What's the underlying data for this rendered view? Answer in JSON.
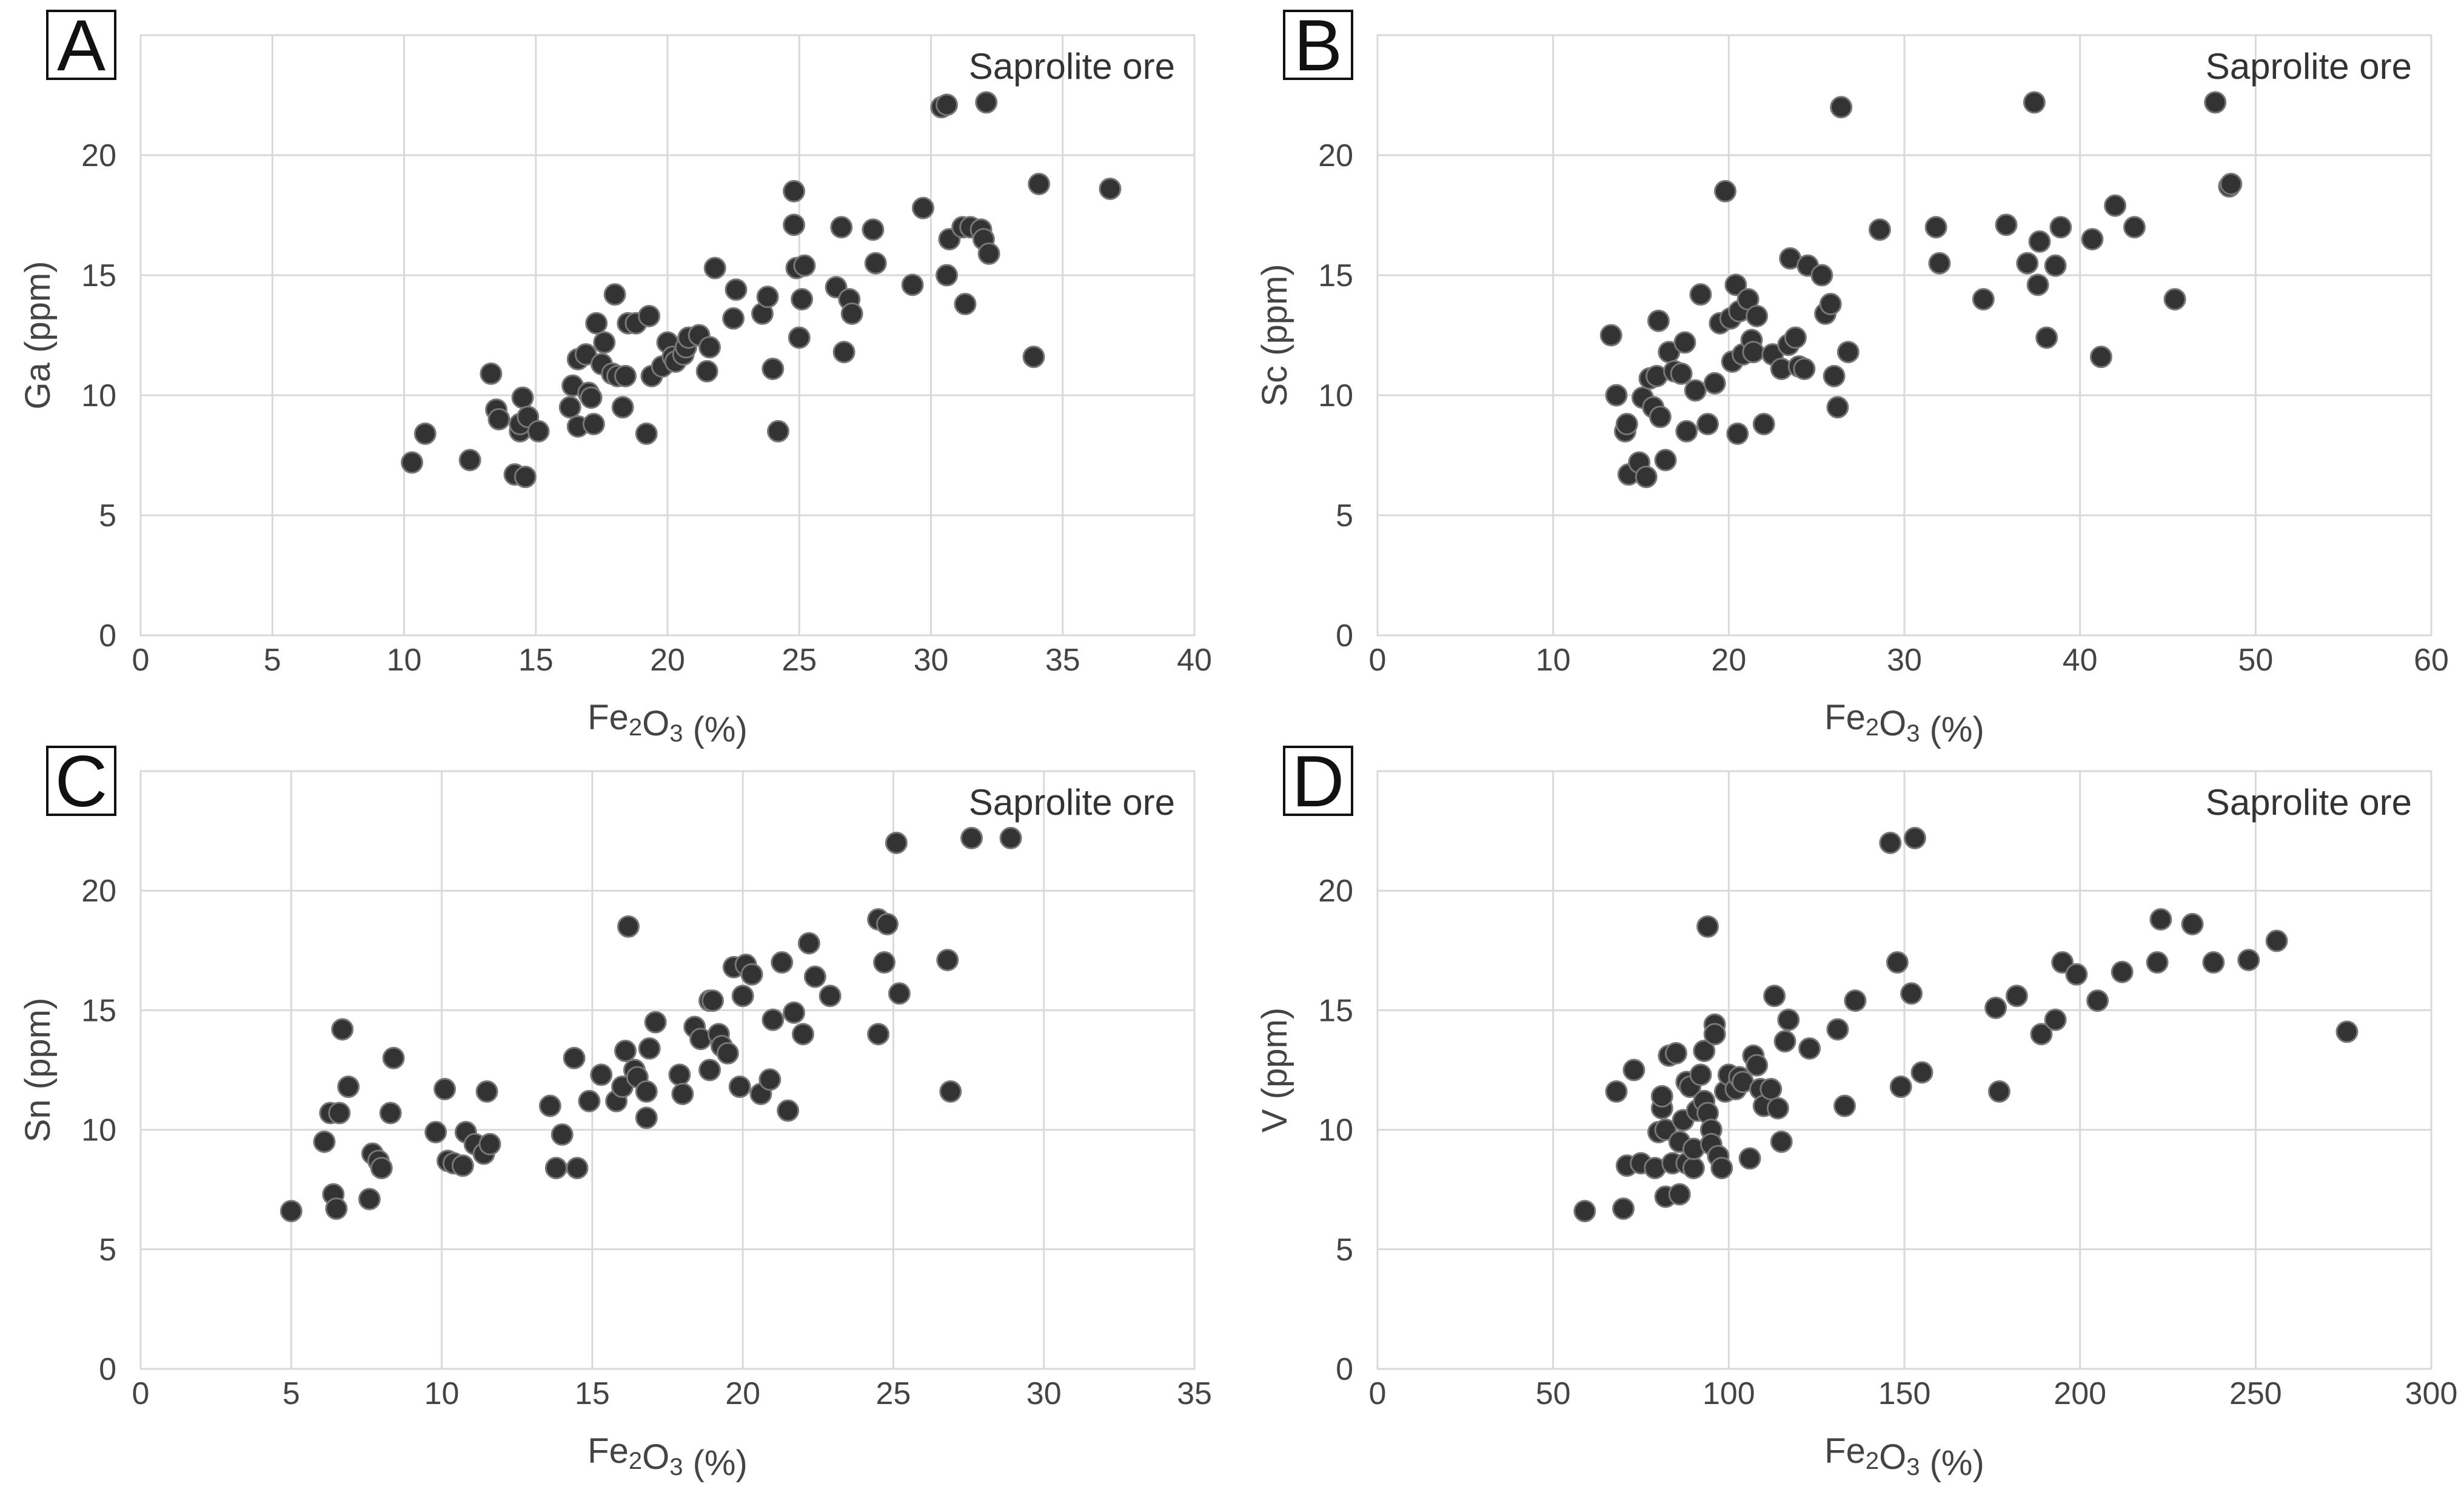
{
  "chart_data": [
    {
      "type": "scatter",
      "panel": "A",
      "annotation": "Saprolite ore",
      "xlabel": "Fe₂O₃ (%)",
      "ylabel": "Ga (ppm)",
      "xlim": [
        0,
        40
      ],
      "ylim": [
        0,
        25
      ],
      "xticks": [
        0,
        5,
        10,
        15,
        20,
        25,
        30,
        35,
        40
      ],
      "yticks": [
        0,
        5,
        10,
        15,
        20
      ],
      "grid": true,
      "x": [
        10.3,
        10.8,
        12.5,
        13.3,
        13.5,
        13.6,
        14.2,
        14.4,
        14.4,
        14.5,
        14.6,
        14.7,
        15.1,
        16.3,
        16.4,
        16.6,
        16.6,
        16.9,
        17.0,
        17.1,
        17.2,
        17.3,
        17.5,
        17.6,
        17.9,
        18.0,
        18.1,
        18.3,
        18.4,
        18.5,
        18.8,
        19.2,
        19.3,
        19.4,
        19.8,
        20.0,
        20.2,
        20.3,
        20.6,
        20.7,
        20.8,
        21.2,
        21.5,
        21.6,
        21.8,
        22.5,
        22.6,
        23.6,
        23.8,
        24.0,
        24.2,
        24.8,
        24.8,
        24.9,
        25.0,
        25.1,
        25.2,
        26.4,
        26.6,
        26.7,
        26.9,
        27.0,
        27.8,
        27.9,
        29.3,
        29.7,
        30.4,
        30.6,
        30.6,
        30.7,
        31.2,
        31.3,
        31.5,
        31.9,
        32.0,
        32.1,
        32.2,
        33.9,
        34.1,
        36.8
      ],
      "y": [
        7.2,
        8.4,
        7.3,
        10.9,
        9.4,
        9.0,
        6.7,
        8.5,
        8.8,
        9.9,
        6.6,
        9.1,
        8.5,
        9.5,
        10.4,
        11.5,
        8.7,
        11.7,
        10.1,
        9.9,
        8.8,
        13.0,
        11.3,
        12.2,
        10.9,
        14.2,
        10.8,
        9.5,
        10.8,
        13.0,
        13.0,
        8.4,
        13.3,
        10.8,
        11.2,
        12.2,
        11.6,
        11.4,
        11.7,
        12.0,
        12.4,
        12.5,
        11.0,
        12.0,
        15.3,
        13.2,
        14.4,
        13.4,
        14.1,
        11.1,
        8.5,
        18.5,
        17.1,
        15.3,
        12.4,
        14.0,
        15.4,
        14.5,
        17.0,
        11.8,
        14.0,
        13.4,
        16.9,
        15.5,
        14.6,
        17.8,
        22.0,
        22.1,
        15.0,
        16.5,
        17.0,
        13.8,
        17.0,
        16.9,
        16.5,
        22.2,
        15.9,
        11.6,
        18.8,
        18.6
      ]
    },
    {
      "type": "scatter",
      "panel": "B",
      "annotation": "Saprolite ore",
      "xlabel": "Fe₂O₃ (%)",
      "ylabel": "Sc (ppm)",
      "xlim": [
        0,
        60
      ],
      "ylim": [
        0,
        25
      ],
      "xticks": [
        0,
        10,
        20,
        30,
        40,
        50,
        60
      ],
      "yticks": [
        0,
        5,
        10,
        15,
        20
      ],
      "grid": true,
      "x": [
        13.3,
        13.6,
        14.1,
        14.2,
        14.3,
        14.9,
        15.1,
        15.3,
        15.5,
        15.7,
        15.9,
        16.0,
        16.1,
        16.4,
        16.6,
        16.9,
        17.3,
        17.5,
        17.6,
        18.1,
        18.4,
        18.8,
        19.2,
        19.5,
        19.8,
        20.1,
        20.2,
        20.4,
        20.5,
        20.6,
        20.8,
        21.1,
        21.3,
        21.4,
        21.6,
        22.0,
        22.5,
        23.0,
        23.4,
        23.5,
        23.8,
        24.0,
        24.3,
        24.5,
        25.3,
        25.5,
        25.8,
        26.0,
        26.2,
        26.4,
        26.8,
        28.6,
        31.8,
        32.0,
        34.5,
        35.8,
        37.0,
        37.4,
        37.6,
        37.7,
        38.1,
        38.6,
        38.9,
        40.7,
        41.2,
        42.0,
        43.1,
        45.4,
        47.7,
        48.5,
        48.6
      ],
      "y": [
        12.5,
        10.0,
        8.5,
        8.8,
        6.7,
        7.2,
        9.9,
        6.6,
        10.7,
        9.5,
        10.8,
        13.1,
        9.1,
        7.3,
        11.8,
        11.0,
        10.9,
        12.2,
        8.5,
        10.2,
        14.2,
        8.8,
        10.5,
        13.0,
        18.5,
        13.2,
        11.4,
        14.6,
        8.4,
        13.5,
        11.7,
        14.0,
        12.3,
        11.8,
        13.3,
        8.8,
        11.7,
        11.1,
        12.1,
        15.7,
        12.4,
        11.2,
        11.1,
        15.4,
        15.0,
        13.4,
        13.8,
        10.8,
        9.5,
        22.0,
        11.8,
        16.9,
        17.0,
        15.5,
        14.0,
        17.1,
        15.5,
        22.2,
        14.6,
        16.4,
        12.4,
        15.4,
        17.0,
        16.5,
        11.6,
        17.9,
        17.0,
        14.0,
        22.2,
        18.7,
        18.8
      ]
    },
    {
      "type": "scatter",
      "panel": "C",
      "annotation": "Saprolite ore",
      "xlabel": "Fe₂O₃ (%)",
      "ylabel": "Sn (ppm)",
      "xlim": [
        0,
        35
      ],
      "ylim": [
        0,
        25
      ],
      "xticks": [
        0,
        5,
        10,
        15,
        20,
        25,
        30,
        35
      ],
      "yticks": [
        0,
        5,
        10,
        15,
        20
      ],
      "grid": true,
      "x": [
        5.0,
        6.1,
        6.3,
        6.4,
        6.5,
        6.6,
        6.7,
        6.9,
        7.6,
        7.7,
        7.9,
        8.0,
        8.3,
        8.4,
        9.8,
        10.1,
        10.2,
        10.4,
        10.7,
        10.8,
        11.1,
        11.4,
        11.5,
        11.6,
        13.6,
        13.8,
        14.0,
        14.4,
        14.5,
        14.9,
        15.3,
        15.8,
        16.0,
        16.1,
        16.2,
        16.4,
        16.5,
        16.8,
        16.8,
        16.9,
        17.1,
        17.9,
        18.0,
        18.4,
        18.6,
        18.9,
        18.9,
        19.0,
        19.2,
        19.3,
        19.5,
        19.7,
        19.9,
        20.0,
        20.1,
        20.3,
        20.6,
        20.9,
        21.0,
        21.3,
        21.5,
        21.7,
        22.0,
        22.2,
        22.4,
        22.9,
        24.5,
        24.5,
        24.7,
        24.8,
        25.1,
        25.2,
        26.8,
        26.9,
        27.6,
        28.9
      ],
      "y": [
        6.6,
        9.5,
        10.7,
        7.3,
        6.7,
        10.7,
        14.2,
        11.8,
        7.1,
        9.0,
        8.7,
        8.4,
        10.7,
        13.0,
        9.9,
        11.7,
        8.7,
        8.6,
        8.5,
        9.9,
        9.4,
        9.0,
        11.6,
        9.4,
        11.0,
        8.4,
        9.8,
        13.0,
        8.4,
        11.2,
        12.3,
        11.2,
        11.8,
        13.3,
        18.5,
        12.5,
        12.2,
        10.5,
        11.6,
        13.4,
        14.5,
        12.3,
        11.5,
        14.3,
        13.8,
        12.5,
        15.4,
        15.4,
        14.0,
        13.5,
        13.2,
        16.8,
        11.8,
        15.6,
        16.9,
        16.5,
        11.5,
        12.1,
        14.6,
        17.0,
        10.8,
        14.9,
        14.0,
        17.8,
        16.4,
        15.6,
        18.8,
        14.0,
        17.0,
        18.6,
        22.0,
        15.7,
        17.1,
        11.6,
        22.2,
        22.2
      ]
    },
    {
      "type": "scatter",
      "panel": "D",
      "annotation": "Saprolite ore",
      "xlabel": "Fe₂O₃ (%)",
      "ylabel": "V (ppm)",
      "xlim": [
        0,
        300
      ],
      "ylim": [
        0,
        25
      ],
      "xticks": [
        0,
        50,
        100,
        150,
        200,
        250,
        300
      ],
      "yticks": [
        0,
        5,
        10,
        15,
        20
      ],
      "grid": true,
      "x": [
        59,
        68,
        70,
        71,
        73,
        75,
        79,
        80,
        81,
        81,
        82,
        82,
        83,
        84,
        85,
        86,
        86,
        87,
        88,
        88,
        89,
        90,
        90,
        91,
        92,
        93,
        93,
        94,
        94,
        95,
        95,
        96,
        96,
        97,
        98,
        99,
        100,
        102,
        103,
        104,
        106,
        107,
        108,
        109,
        110,
        112,
        113,
        114,
        115,
        116,
        117,
        123,
        131,
        133,
        136,
        146,
        148,
        149,
        152,
        153,
        155,
        176,
        177,
        182,
        189,
        193,
        195,
        199,
        205,
        212,
        222,
        223,
        232,
        238,
        248,
        256,
        276
      ],
      "y": [
        6.6,
        11.6,
        6.7,
        8.5,
        12.5,
        8.6,
        8.4,
        9.9,
        10.9,
        11.4,
        7.2,
        10.0,
        13.1,
        8.6,
        13.2,
        7.3,
        9.5,
        10.4,
        8.6,
        12.0,
        11.8,
        8.4,
        9.2,
        10.8,
        12.3,
        11.2,
        13.3,
        10.7,
        18.5,
        10.0,
        9.4,
        14.4,
        14.0,
        8.9,
        8.4,
        11.6,
        12.3,
        11.7,
        12.2,
        12.0,
        8.8,
        13.1,
        12.7,
        11.7,
        11.0,
        11.7,
        15.6,
        10.9,
        9.5,
        13.7,
        14.6,
        13.4,
        14.2,
        11.0,
        15.4,
        22.0,
        17.0,
        11.8,
        15.7,
        22.2,
        12.4,
        15.1,
        11.6,
        15.6,
        14.0,
        14.6,
        17.0,
        16.5,
        15.4,
        16.6,
        17.0,
        18.8,
        18.6,
        17.0,
        17.1,
        17.9,
        14.1
      ]
    }
  ],
  "panels": [
    {
      "letter": "A",
      "annotation": "Saprolite ore",
      "xlabel_base": "Fe",
      "xlabel_sub1": "2",
      "xlabel_mid": "O",
      "xlabel_sub2": "3",
      "xlabel_tail": " (%)",
      "ylabel": "Ga (ppm)"
    },
    {
      "letter": "B",
      "annotation": "Saprolite ore",
      "xlabel_base": "Fe",
      "xlabel_sub1": "2",
      "xlabel_mid": "O",
      "xlabel_sub2": "3",
      "xlabel_tail": " (%)",
      "ylabel": "Sc (ppm)"
    },
    {
      "letter": "C",
      "annotation": "Saprolite ore",
      "xlabel_base": "Fe",
      "xlabel_sub1": "2",
      "xlabel_mid": "O",
      "xlabel_sub2": "3",
      "xlabel_tail": " (%)",
      "ylabel": "Sn (ppm)"
    },
    {
      "letter": "D",
      "annotation": "Saprolite ore",
      "xlabel_base": "Fe",
      "xlabel_sub1": "2",
      "xlabel_mid": "O",
      "xlabel_sub2": "3",
      "xlabel_tail": " (%)",
      "ylabel": "V (ppm)"
    }
  ],
  "colors": {
    "marker_fill": "#333333",
    "marker_edge": "#777777",
    "grid": "#d9d9d9",
    "text": "#444444"
  }
}
